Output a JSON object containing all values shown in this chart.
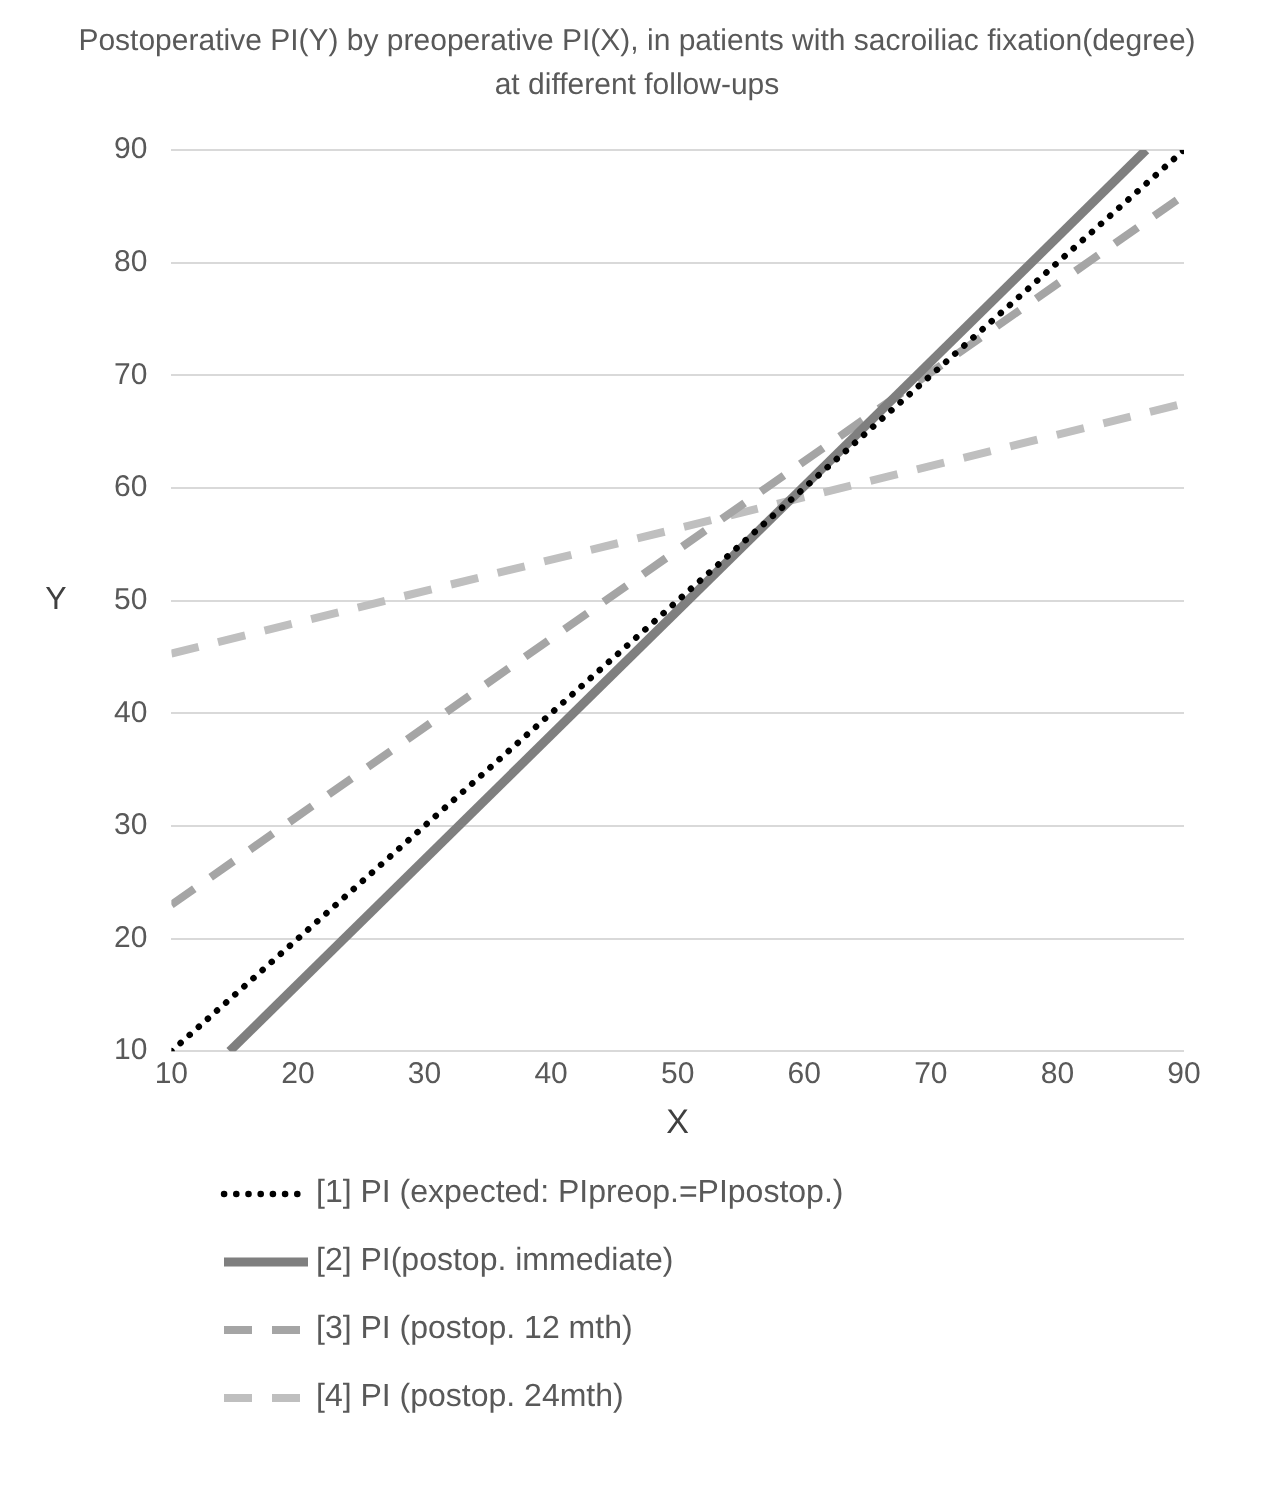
{
  "chart_data": {
    "type": "line",
    "title": "Postoperative PI(Y) by preoperative PI(X), in patients with sacroiliac fixation(degree) at different follow-ups",
    "xlabel": "X",
    "ylabel": "Y",
    "xlim": [
      10,
      90
    ],
    "xticks": [
      10,
      20,
      30,
      40,
      50,
      60,
      70,
      80,
      90
    ],
    "ylim": [
      10,
      90
    ],
    "yticks": [
      10,
      20,
      30,
      40,
      50,
      60,
      70,
      80,
      90
    ],
    "grid": "y",
    "legend": "bottom",
    "marker": "none",
    "series": [
      {
        "name": "[1] PI (expected: PIpreop.=PIpostop.)",
        "color": "#000000",
        "line_style": "dotted",
        "x": [
          10,
          90
        ],
        "values": [
          10,
          90
        ]
      },
      {
        "name": "[2] PI(postop. immediate)",
        "color": "#7f7f7f",
        "line_style": "solid",
        "x": [
          14.6,
          87
        ],
        "values": [
          10,
          90
        ]
      },
      {
        "name": "[3] PI (postop. 12 mth)",
        "color": "#a5a5a5",
        "line_style": "dashed",
        "x": [
          10,
          90
        ],
        "values": [
          23,
          86
        ]
      },
      {
        "name": "[4] PI (postop. 24mth)",
        "color": "#bfbfbf",
        "line_style": "dashed",
        "x": [
          10,
          90
        ],
        "values": [
          45.3,
          67.5
        ]
      }
    ]
  }
}
